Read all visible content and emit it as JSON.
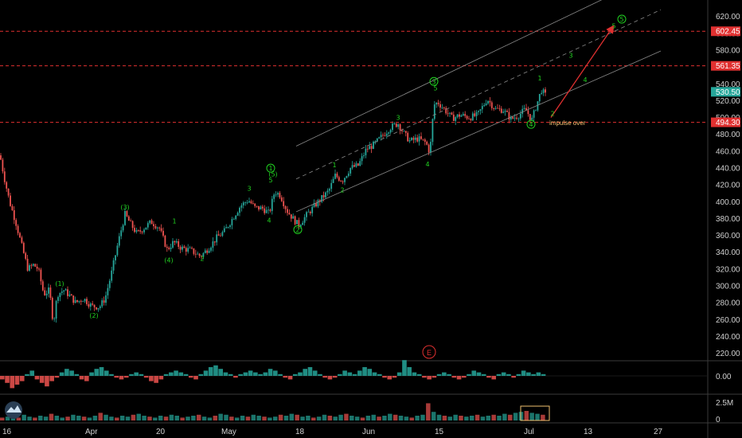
{
  "chart_data": {
    "type": "candlestick",
    "y_axis": {
      "ticks": [
        "620.00",
        "600.00",
        "580.00",
        "560.00",
        "540.00",
        "520.00",
        "500.00",
        "480.00",
        "460.00",
        "440.00",
        "420.00",
        "400.00",
        "380.00",
        "360.00",
        "340.00",
        "320.00",
        "300.00",
        "280.00",
        "260.00",
        "240.00",
        "220.00"
      ],
      "range": [
        212,
        632
      ]
    },
    "x_axis": {
      "labels": [
        "16",
        "Apr",
        "20",
        "May",
        "18",
        "Jun",
        "15",
        "Jul",
        "13",
        "27"
      ]
    },
    "price_levels": [
      {
        "label": "602.45",
        "value": 602.45,
        "color": "#e03030"
      },
      {
        "label": "561.35",
        "value": 561.35,
        "color": "#e03030"
      },
      {
        "label": "494.30",
        "value": 494.3,
        "color": "#e03030"
      }
    ],
    "current_price": {
      "label": "530.50",
      "value": 530.5,
      "color": "#26a69a"
    },
    "price_path": [
      {
        "x": 0,
        "y": 455
      },
      {
        "x": 5,
        "y": 430
      },
      {
        "x": 12,
        "y": 400
      },
      {
        "x": 20,
        "y": 375
      },
      {
        "x": 28,
        "y": 345
      },
      {
        "x": 35,
        "y": 320
      },
      {
        "x": 42,
        "y": 325
      },
      {
        "x": 48,
        "y": 320
      },
      {
        "x": 55,
        "y": 290
      },
      {
        "x": 62,
        "y": 295
      },
      {
        "x": 67,
        "y": 255
      },
      {
        "x": 72,
        "y": 290
      },
      {
        "x": 80,
        "y": 295
      },
      {
        "x": 88,
        "y": 288
      },
      {
        "x": 95,
        "y": 280
      },
      {
        "x": 105,
        "y": 285
      },
      {
        "x": 115,
        "y": 276
      },
      {
        "x": 125,
        "y": 275
      },
      {
        "x": 132,
        "y": 285
      },
      {
        "x": 140,
        "y": 315
      },
      {
        "x": 148,
        "y": 350
      },
      {
        "x": 157,
        "y": 385
      },
      {
        "x": 165,
        "y": 372
      },
      {
        "x": 172,
        "y": 362
      },
      {
        "x": 180,
        "y": 368
      },
      {
        "x": 190,
        "y": 376
      },
      {
        "x": 200,
        "y": 369
      },
      {
        "x": 210,
        "y": 343
      },
      {
        "x": 218,
        "y": 352
      },
      {
        "x": 228,
        "y": 345
      },
      {
        "x": 240,
        "y": 342
      },
      {
        "x": 252,
        "y": 335
      },
      {
        "x": 262,
        "y": 345
      },
      {
        "x": 272,
        "y": 357
      },
      {
        "x": 282,
        "y": 365
      },
      {
        "x": 292,
        "y": 380
      },
      {
        "x": 302,
        "y": 395
      },
      {
        "x": 312,
        "y": 402
      },
      {
        "x": 320,
        "y": 393
      },
      {
        "x": 330,
        "y": 392
      },
      {
        "x": 338,
        "y": 386
      },
      {
        "x": 345,
        "y": 412
      },
      {
        "x": 352,
        "y": 408
      },
      {
        "x": 360,
        "y": 390
      },
      {
        "x": 368,
        "y": 380
      },
      {
        "x": 375,
        "y": 372
      },
      {
        "x": 385,
        "y": 384
      },
      {
        "x": 395,
        "y": 395
      },
      {
        "x": 405,
        "y": 405
      },
      {
        "x": 413,
        "y": 413
      },
      {
        "x": 421,
        "y": 431
      },
      {
        "x": 430,
        "y": 425
      },
      {
        "x": 440,
        "y": 440
      },
      {
        "x": 450,
        "y": 443
      },
      {
        "x": 460,
        "y": 462
      },
      {
        "x": 470,
        "y": 468
      },
      {
        "x": 480,
        "y": 478
      },
      {
        "x": 490,
        "y": 488
      },
      {
        "x": 500,
        "y": 493
      },
      {
        "x": 508,
        "y": 480
      },
      {
        "x": 515,
        "y": 472
      },
      {
        "x": 525,
        "y": 475
      },
      {
        "x": 535,
        "y": 470
      },
      {
        "x": 540,
        "y": 458
      },
      {
        "x": 545,
        "y": 515
      },
      {
        "x": 550,
        "y": 518
      },
      {
        "x": 558,
        "y": 510
      },
      {
        "x": 568,
        "y": 499
      },
      {
        "x": 578,
        "y": 503
      },
      {
        "x": 590,
        "y": 500
      },
      {
        "x": 600,
        "y": 503
      },
      {
        "x": 612,
        "y": 522
      },
      {
        "x": 622,
        "y": 510
      },
      {
        "x": 632,
        "y": 509
      },
      {
        "x": 642,
        "y": 498
      },
      {
        "x": 652,
        "y": 503
      },
      {
        "x": 660,
        "y": 510
      },
      {
        "x": 668,
        "y": 497
      },
      {
        "x": 674,
        "y": 515
      },
      {
        "x": 680,
        "y": 533
      },
      {
        "x": 686,
        "y": 525
      }
    ],
    "channel": {
      "upper": [
        [
          372,
          466
        ],
        [
          818,
          668
        ]
      ],
      "lower": [
        [
          372,
          388
        ],
        [
          830,
          579
        ]
      ],
      "mid": [
        [
          372,
          427
        ],
        [
          830,
          628
        ]
      ]
    },
    "projection_arrow": {
      "from": {
        "x": 692,
        "y": 500
      },
      "to": {
        "x": 770,
        "y": 608
      },
      "color": "#e03030"
    },
    "wave_labels": [
      {
        "text": "(3)",
        "x": 157,
        "y": 391,
        "circled": false
      },
      {
        "text": "1",
        "x": 219,
        "y": 374,
        "circled": false
      },
      {
        "text": "(1)",
        "x": 75,
        "y": 300,
        "circled": false
      },
      {
        "text": "(2)",
        "x": 118,
        "y": 262,
        "circled": false
      },
      {
        "text": "(4)",
        "x": 212,
        "y": 328,
        "circled": false
      },
      {
        "text": "2",
        "x": 254,
        "y": 330,
        "circled": false
      },
      {
        "text": "3",
        "x": 313,
        "y": 413,
        "circled": false
      },
      {
        "text": "4",
        "x": 338,
        "y": 375,
        "circled": false
      },
      {
        "text": "5",
        "x": 340,
        "y": 423,
        "circled": false
      },
      {
        "text": "(5)",
        "x": 343,
        "y": 430,
        "circled": false
      },
      {
        "text": "1",
        "x": 340,
        "y": 437,
        "circled": true
      },
      {
        "text": "2",
        "x": 374,
        "y": 364,
        "circled": true
      },
      {
        "text": "1",
        "x": 420,
        "y": 441,
        "circled": false
      },
      {
        "text": "2",
        "x": 430,
        "y": 411,
        "circled": false
      },
      {
        "text": "3",
        "x": 500,
        "y": 497,
        "circled": false
      },
      {
        "text": "4",
        "x": 537,
        "y": 442,
        "circled": false
      },
      {
        "text": "3",
        "x": 545,
        "y": 540,
        "circled": true
      },
      {
        "text": "5",
        "x": 547,
        "y": 532,
        "circled": false
      },
      {
        "text": "4",
        "x": 667,
        "y": 489,
        "circled": true
      },
      {
        "text": "1",
        "x": 678,
        "y": 544,
        "circled": false
      },
      {
        "text": "2",
        "x": 694,
        "y": 502,
        "circled": false
      },
      {
        "text": "3",
        "x": 717,
        "y": 571,
        "circled": false
      },
      {
        "text": "4",
        "x": 735,
        "y": 542,
        "circled": false
      },
      {
        "text": "5",
        "x": 771,
        "y": 606,
        "circled": false
      },
      {
        "text": "5",
        "x": 781,
        "y": 614,
        "circled": true
      }
    ],
    "annotations": [
      {
        "text": "impulse over",
        "x": 690,
        "y": 491
      }
    ],
    "event_marker": {
      "text": "E"
    },
    "oscillator": {
      "tick_label": "0.00",
      "values": [
        -2,
        -4,
        -7,
        -5,
        -3,
        1,
        3,
        -2,
        -4,
        -6,
        -3,
        -1,
        2,
        4,
        3,
        1,
        -2,
        -3,
        2,
        4,
        5,
        3,
        1,
        -1,
        -2,
        -1,
        1,
        2,
        1,
        -1,
        -3,
        -4,
        -2,
        1,
        2,
        3,
        2,
        1,
        -1,
        -2,
        1,
        3,
        5,
        6,
        4,
        2,
        1,
        -1,
        1,
        2,
        3,
        2,
        1,
        2,
        4,
        3,
        1,
        -1,
        -2,
        1,
        2,
        4,
        5,
        3,
        1,
        -1,
        -2,
        -1,
        1,
        3,
        2,
        1,
        3,
        5,
        4,
        2,
        1,
        -1,
        -2,
        -1,
        2,
        9,
        5,
        2,
        1,
        -1,
        -2,
        -1,
        1,
        2,
        1,
        -1,
        -2,
        -1,
        1,
        3,
        2,
        1,
        -1,
        -2,
        1,
        2,
        1,
        -1,
        1,
        3,
        2,
        1,
        2,
        1
      ]
    },
    "volume": {
      "tick_labels": [
        "2.5M",
        "0"
      ],
      "values": [
        3,
        4,
        5,
        3,
        6,
        4,
        3,
        5,
        4,
        7,
        5,
        3,
        4,
        6,
        5,
        4,
        3,
        5,
        8,
        6,
        4,
        3,
        5,
        4,
        6,
        7,
        5,
        4,
        3,
        5,
        4,
        6,
        5,
        3,
        4,
        5,
        6,
        4,
        3,
        5,
        7,
        6,
        4,
        3,
        5,
        4,
        6,
        5,
        4,
        3,
        4,
        6,
        5,
        7,
        6,
        4,
        5,
        3,
        4,
        6,
        5,
        4,
        6,
        7,
        5,
        4,
        3,
        5,
        6,
        4,
        5,
        7,
        6,
        5,
        4,
        3,
        5,
        6,
        18,
        9,
        6,
        5,
        4,
        6,
        5,
        4,
        5,
        6,
        4,
        5,
        6,
        5,
        7,
        6,
        8,
        9,
        10,
        8,
        7,
        6
      ]
    }
  }
}
